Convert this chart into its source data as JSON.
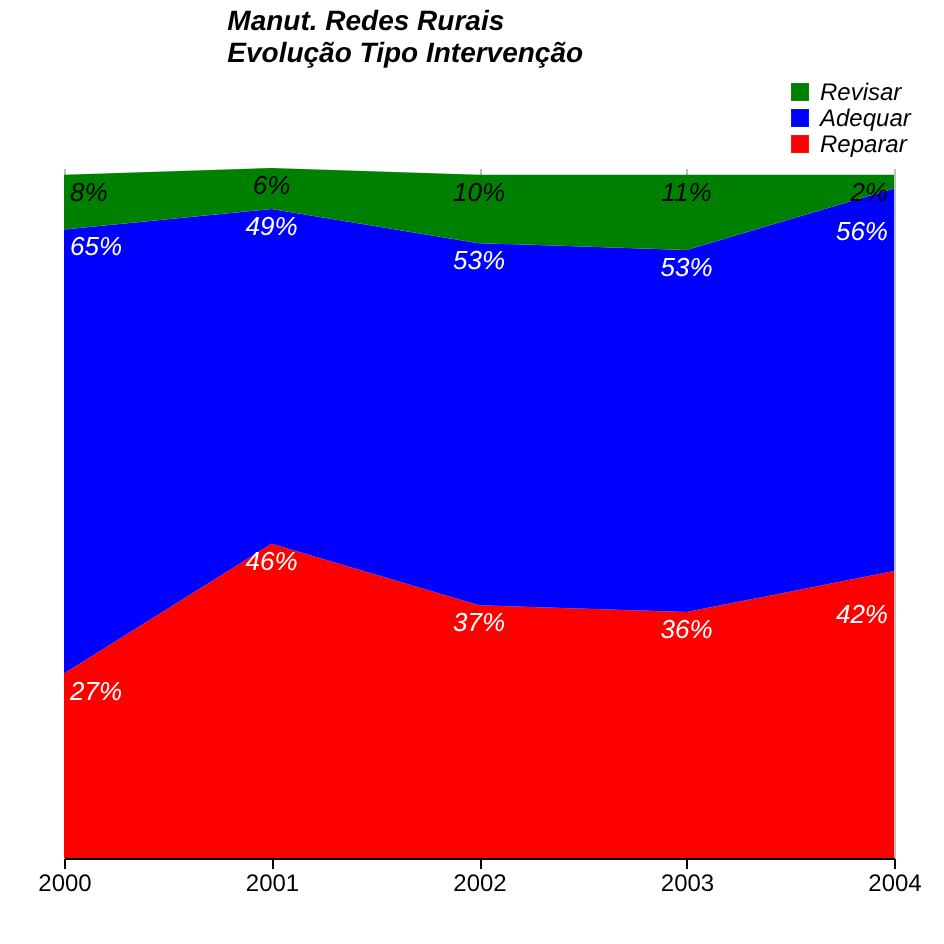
{
  "chart_data": {
    "type": "area",
    "stacked": true,
    "title": "Manut. Redes Rurais",
    "subtitle": "Evolução Tipo Intervenção",
    "categories": [
      "2000",
      "2001",
      "2002",
      "2003",
      "2004"
    ],
    "series": [
      {
        "name": "Reparar",
        "color": "#ff0000",
        "values": [
          27,
          46,
          37,
          36,
          42
        ],
        "value_labels": [
          "27%",
          "46%",
          "37%",
          "36%",
          "42%"
        ]
      },
      {
        "name": "Adequar",
        "color": "#0000ff",
        "values": [
          65,
          49,
          53,
          53,
          56
        ],
        "value_labels": [
          "65%",
          "49%",
          "53%",
          "53%",
          "56%"
        ]
      },
      {
        "name": "Revisar",
        "color": "#008000",
        "values": [
          8,
          6,
          10,
          11,
          2
        ],
        "value_labels": [
          "8%",
          "6%",
          "10%",
          "11%",
          "2%"
        ]
      }
    ],
    "grid": "x",
    "legend": "top right",
    "tick_labels": "x"
  }
}
